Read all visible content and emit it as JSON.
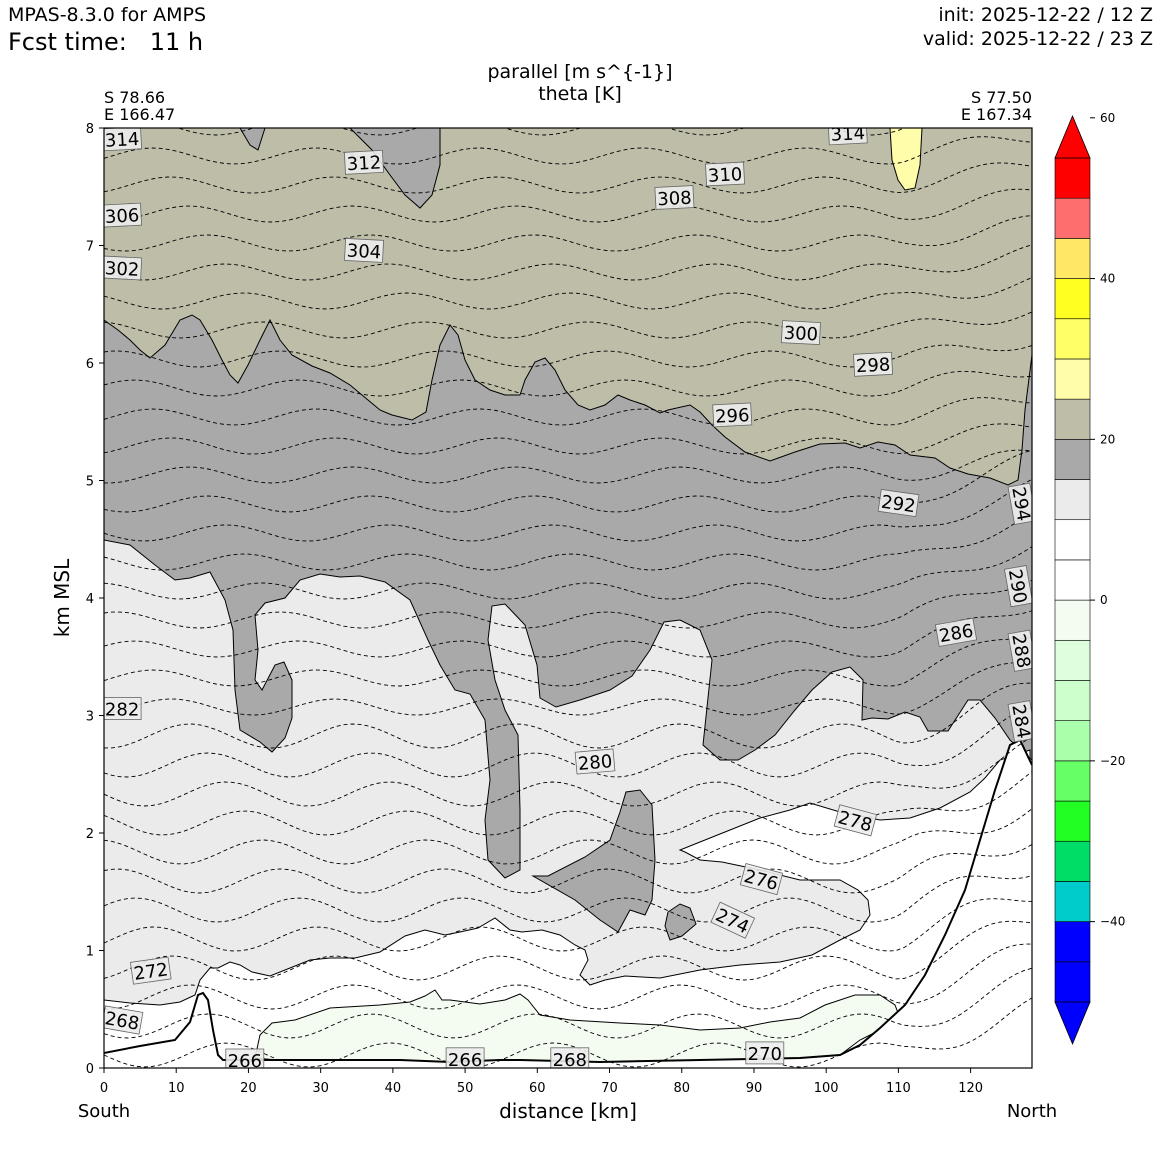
{
  "header": {
    "model": "MPAS-8.3.0 for AMPS",
    "fcst_label": "Fcst time:",
    "fcst_value": "11 h",
    "init": "init: 2025-12-22 / 12 Z",
    "valid": "valid: 2025-12-22 / 23 Z"
  },
  "titles": {
    "line1": "parallel [m s^{-1}]",
    "line2": "theta [K]"
  },
  "endpoints": {
    "left_lat": "S 78.66",
    "left_lon": "E 166.47",
    "right_lat": "S 77.50",
    "right_lon": "E 167.34",
    "left_dir": "South",
    "right_dir": "North"
  },
  "colors": {
    "plus_20": "#bdbda8",
    "plus_15": "#a9a9a9",
    "plus_10": "#ebebeb",
    "zero": "#ffffff",
    "minus_5": "#f4fcf1",
    "plus_25": "#fffcaa",
    "terrain": "#000000"
  },
  "chart_data": {
    "type": "cross-section contour",
    "xlabel": "distance [km]",
    "ylabel": "km MSL",
    "xlim": [
      0,
      128.5
    ],
    "ylim": [
      0,
      8
    ],
    "xticks": [
      "0",
      "10",
      "20",
      "30",
      "40",
      "50",
      "60",
      "70",
      "80",
      "90",
      "100",
      "110",
      "120"
    ],
    "yticks": [
      "0",
      "1",
      "2",
      "3",
      "4",
      "5",
      "6",
      "7",
      "8"
    ],
    "colorbar": {
      "levels": [
        -55,
        -50,
        -45,
        -40,
        -35,
        -30,
        -25,
        -20,
        -15,
        -10,
        -5,
        0,
        5,
        10,
        15,
        20,
        25,
        30,
        35,
        40,
        45,
        50,
        55,
        60
      ],
      "colors": [
        "#0000ff",
        "#0000ff",
        "#0000ff",
        "#00cccc",
        "#00dd66",
        "#22ff22",
        "#66ff66",
        "#aaffaa",
        "#ccffcc",
        "#ddffdd",
        "#f4fcf1",
        "#ffffff",
        "#ffffff",
        "#ebebeb",
        "#a9a9a9",
        "#bdbda8",
        "#fffcaa",
        "#ffff66",
        "#ffff22",
        "#ffe866",
        "#ff6e6e",
        "#ff0000",
        "#ff0000"
      ],
      "tick_values": [
        -40,
        -20,
        0,
        20,
        40,
        60
      ],
      "tick_labels": [
        "−40",
        "−20",
        "0",
        "20",
        "40",
        "60"
      ]
    },
    "theta_labels": [
      {
        "text": "314",
        "x": 2.5,
        "y": 7.9,
        "rot": -3
      },
      {
        "text": "314",
        "x": 103,
        "y": 7.95,
        "rot": -3
      },
      {
        "text": "312",
        "x": 36,
        "y": 7.7,
        "rot": -3
      },
      {
        "text": "310",
        "x": 86,
        "y": 7.6,
        "rot": -3
      },
      {
        "text": "308",
        "x": 79,
        "y": 7.4,
        "rot": -3
      },
      {
        "text": "306",
        "x": 2.5,
        "y": 7.25,
        "rot": -3
      },
      {
        "text": "304",
        "x": 36,
        "y": 6.95,
        "rot": 3
      },
      {
        "text": "302",
        "x": 2.5,
        "y": 6.8,
        "rot": 3
      },
      {
        "text": "300",
        "x": 96.5,
        "y": 6.25,
        "rot": 3
      },
      {
        "text": "298",
        "x": 106.5,
        "y": 5.98,
        "rot": -3
      },
      {
        "text": "296",
        "x": 87,
        "y": 5.55,
        "rot": -3
      },
      {
        "text": "292",
        "x": 110,
        "y": 4.8,
        "rot": 8
      },
      {
        "text": "294",
        "x": 127,
        "y": 4.8,
        "rot": 80
      },
      {
        "text": "290",
        "x": 126.5,
        "y": 4.1,
        "rot": 80
      },
      {
        "text": "286",
        "x": 118,
        "y": 3.7,
        "rot": -10
      },
      {
        "text": "288",
        "x": 127,
        "y": 3.55,
        "rot": 80
      },
      {
        "text": "284",
        "x": 127,
        "y": 2.95,
        "rot": 80
      },
      {
        "text": "282",
        "x": 2.5,
        "y": 3.05,
        "rot": 0
      },
      {
        "text": "280",
        "x": 68,
        "y": 2.6,
        "rot": -5
      },
      {
        "text": "278",
        "x": 104,
        "y": 2.1,
        "rot": 15
      },
      {
        "text": "276",
        "x": 91,
        "y": 1.6,
        "rot": 15
      },
      {
        "text": "274",
        "x": 87,
        "y": 1.25,
        "rot": 25
      },
      {
        "text": "272",
        "x": 6.5,
        "y": 0.82,
        "rot": -8
      },
      {
        "text": "268",
        "x": 2.5,
        "y": 0.4,
        "rot": 10
      },
      {
        "text": "266",
        "x": 19.5,
        "y": 0.06,
        "rot": 0
      },
      {
        "text": "266",
        "x": 50,
        "y": 0.07,
        "rot": 0
      },
      {
        "text": "268",
        "x": 64.5,
        "y": 0.07,
        "rot": 0
      },
      {
        "text": "270",
        "x": 91.5,
        "y": 0.12,
        "rot": 0
      }
    ]
  }
}
